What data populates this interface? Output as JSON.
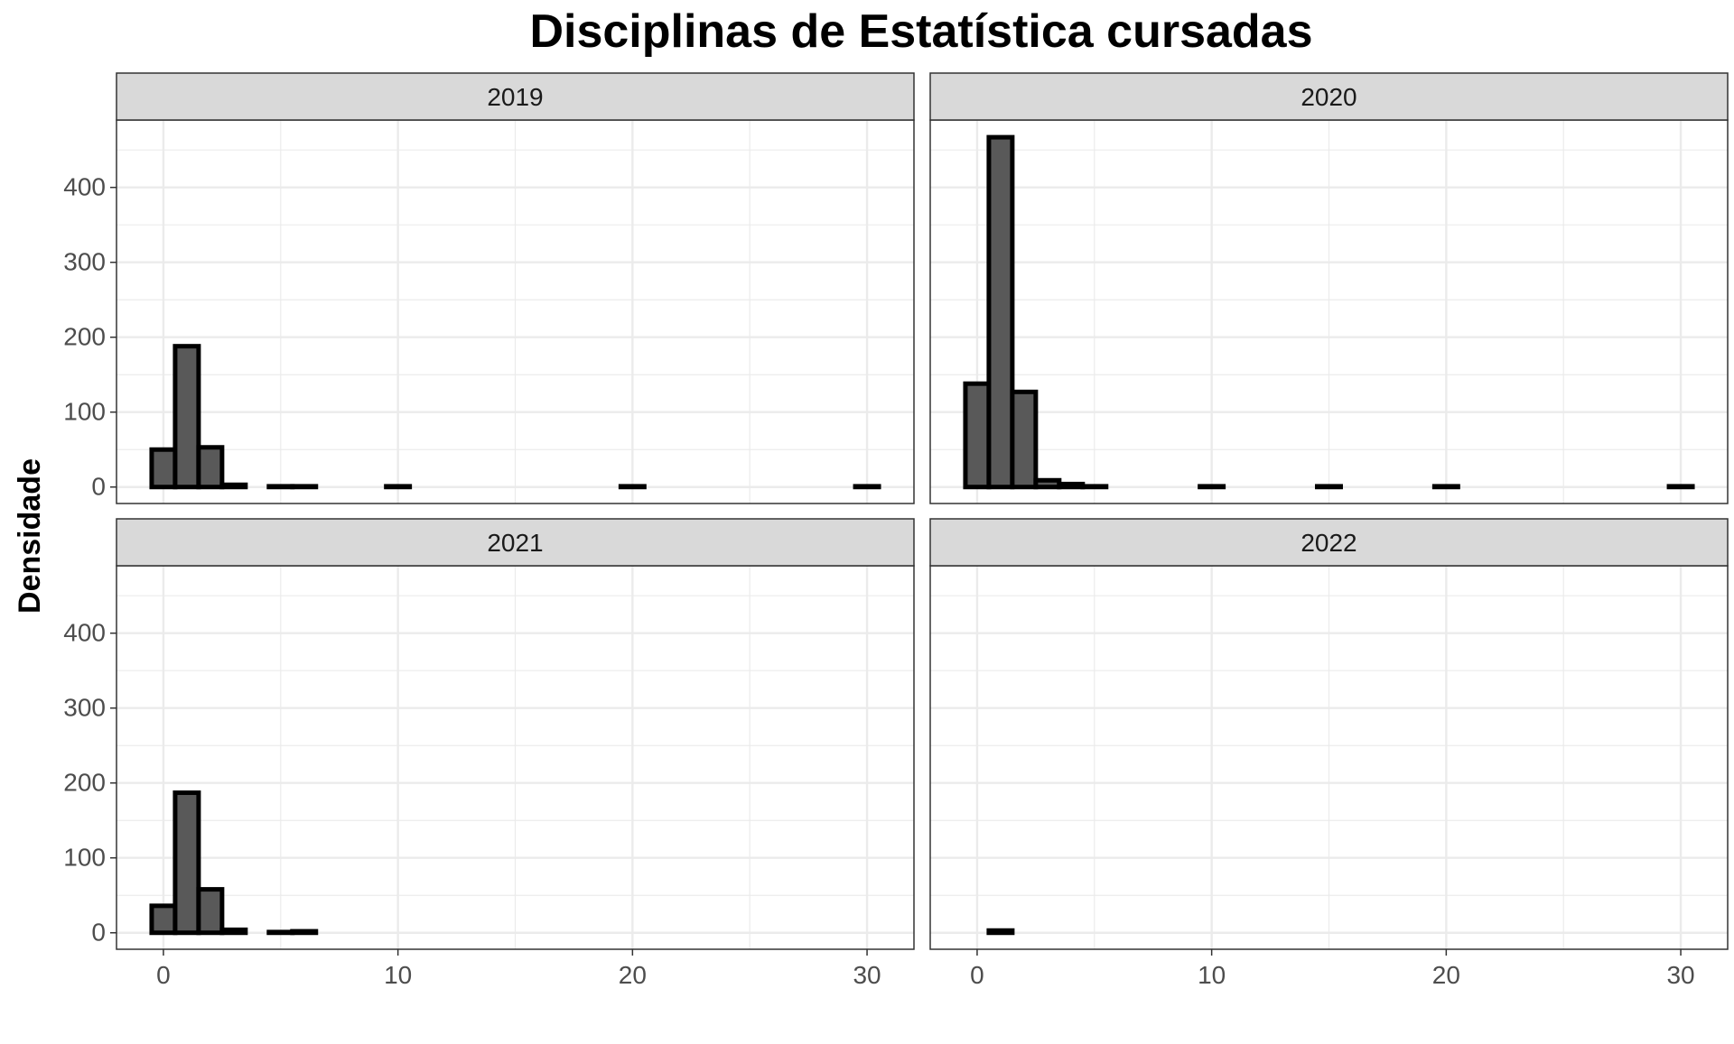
{
  "chart_data": {
    "type": "bar",
    "title": "Disciplinas de Estatística cursadas",
    "xlabel": "",
    "ylabel": "Densidade",
    "xlim": [
      -2,
      32
    ],
    "ylim": [
      -22,
      490
    ],
    "xticks": [
      0,
      10,
      20,
      30
    ],
    "yticks": [
      0,
      100,
      200,
      300,
      400
    ],
    "bin_width": 1,
    "grid": true,
    "panels": [
      {
        "label": "2019",
        "bins": [
          {
            "x": 0,
            "y": 50
          },
          {
            "x": 1,
            "y": 188
          },
          {
            "x": 2,
            "y": 53
          },
          {
            "x": 3,
            "y": 3
          },
          {
            "x": 5,
            "y": 1
          },
          {
            "x": 6,
            "y": 1
          },
          {
            "x": 10,
            "y": 1
          },
          {
            "x": 20,
            "y": 1
          },
          {
            "x": 30,
            "y": 1
          }
        ]
      },
      {
        "label": "2020",
        "bins": [
          {
            "x": 0,
            "y": 138
          },
          {
            "x": 1,
            "y": 467
          },
          {
            "x": 2,
            "y": 127
          },
          {
            "x": 3,
            "y": 9
          },
          {
            "x": 4,
            "y": 4
          },
          {
            "x": 5,
            "y": 1
          },
          {
            "x": 10,
            "y": 1
          },
          {
            "x": 15,
            "y": 1
          },
          {
            "x": 20,
            "y": 1
          },
          {
            "x": 30,
            "y": 1
          }
        ]
      },
      {
        "label": "2021",
        "bins": [
          {
            "x": 0,
            "y": 36
          },
          {
            "x": 1,
            "y": 187
          },
          {
            "x": 2,
            "y": 58
          },
          {
            "x": 3,
            "y": 4
          },
          {
            "x": 5,
            "y": 1
          },
          {
            "x": 6,
            "y": 2
          }
        ]
      },
      {
        "label": "2022",
        "bins": [
          {
            "x": 1,
            "y": 3
          }
        ]
      }
    ],
    "colors": {
      "bar_fill": "#595959",
      "bar_stroke": "#000000",
      "strip_fill": "#d9d9d9",
      "border": "#333333",
      "grid": "#ebebeb",
      "tick_label": "#4d4d4d"
    }
  }
}
